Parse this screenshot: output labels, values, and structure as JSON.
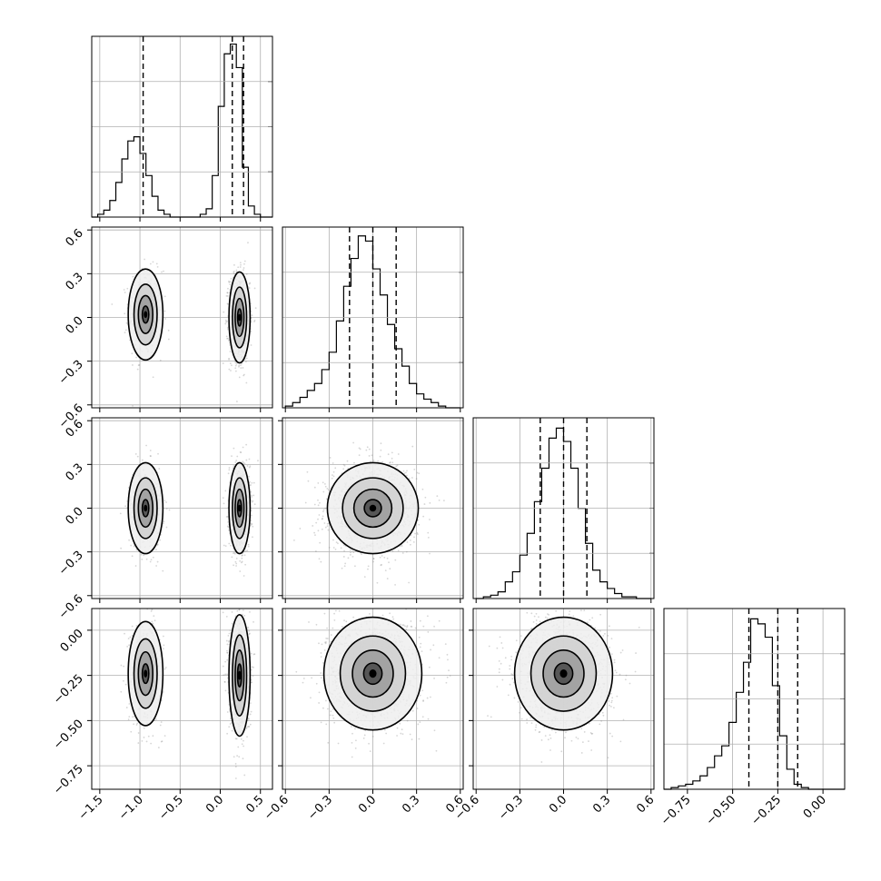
{
  "chart_data": {
    "type": "corner",
    "parameters": 4,
    "grid": true,
    "quantile_lines": "dashed",
    "axis_ranges": [
      [
        -1.6,
        0.65
      ],
      [
        -0.62,
        0.62
      ],
      [
        -0.62,
        0.62
      ],
      [
        -0.88,
        0.12
      ]
    ],
    "ticks": [
      {
        "values": [
          -1.5,
          -1.0,
          -0.5,
          0.0,
          0.5
        ],
        "labels": [
          "−1.5",
          "−1.0",
          "−0.5",
          "0.0",
          "0.5"
        ]
      },
      {
        "values": [
          -0.6,
          -0.3,
          0.0,
          0.3,
          0.6
        ],
        "labels": [
          "−0.6",
          "−0.3",
          "0.0",
          "0.3",
          "0.6"
        ]
      },
      {
        "values": [
          -0.6,
          -0.3,
          0.0,
          0.3,
          0.6
        ],
        "labels": [
          "−0.6",
          "−0.3",
          "0.0",
          "0.3",
          "0.6"
        ]
      },
      {
        "values": [
          -0.75,
          -0.5,
          -0.25,
          0.0
        ],
        "labels": [
          "−0.75",
          "−0.50",
          "−0.25",
          "0.00"
        ]
      }
    ],
    "histograms": [
      {
        "param": 1,
        "edges_start": -1.6,
        "bin_width": 0.075,
        "counts": [
          0,
          2,
          5,
          12,
          25,
          42,
          55,
          58,
          46,
          30,
          15,
          5,
          2,
          0,
          0,
          0,
          0,
          0,
          2,
          6,
          30,
          80,
          118,
          125,
          108,
          36,
          8,
          2,
          0,
          0
        ],
        "ymax": 128,
        "quantiles": [
          -0.96,
          0.15,
          0.29
        ]
      },
      {
        "param": 2,
        "edges_start": -0.6,
        "bin_width": 0.05,
        "counts": [
          1,
          3,
          6,
          10,
          14,
          22,
          32,
          50,
          70,
          86,
          99,
          96,
          80,
          65,
          48,
          34,
          24,
          14,
          8,
          5,
          3,
          1,
          0,
          0
        ],
        "ymax": 102,
        "quantiles": [
          -0.16,
          0.0,
          0.16
        ]
      },
      {
        "param": 3,
        "edges_start": -0.6,
        "bin_width": 0.05,
        "counts": [
          0,
          1,
          2,
          4,
          10,
          16,
          26,
          39,
          58,
          78,
          96,
          102,
          94,
          78,
          54,
          33,
          17,
          10,
          6,
          3,
          1,
          1,
          0,
          0
        ],
        "ymax": 106,
        "quantiles": [
          -0.16,
          0.0,
          0.16
        ]
      },
      {
        "param": 4,
        "edges_start": -0.88,
        "bin_width": 0.04,
        "counts": [
          0,
          1,
          2,
          3,
          5,
          8,
          13,
          20,
          26,
          40,
          58,
          76,
          102,
          99,
          91,
          62,
          32,
          12,
          3,
          1,
          0,
          0,
          0,
          0,
          0
        ],
        "ymax": 106,
        "quantiles": [
          -0.41,
          -0.25,
          -0.14
        ]
      }
    ],
    "joint_clusters": [
      {
        "x_param": 1,
        "y_param": 2,
        "clusters": [
          {
            "mx": -0.93,
            "my": 0.02,
            "sx": 0.09,
            "sy": 0.13,
            "w": 0.35
          },
          {
            "mx": 0.24,
            "my": 0.0,
            "sx": 0.055,
            "sy": 0.13,
            "w": 0.65
          }
        ]
      },
      {
        "x_param": 1,
        "y_param": 3,
        "clusters": [
          {
            "mx": -0.93,
            "my": 0.0,
            "sx": 0.09,
            "sy": 0.13,
            "w": 0.35
          },
          {
            "mx": 0.24,
            "my": 0.0,
            "sx": 0.055,
            "sy": 0.13,
            "w": 0.65
          }
        ]
      },
      {
        "x_param": 2,
        "y_param": 3,
        "clusters": [
          {
            "mx": 0.0,
            "my": 0.0,
            "sx": 0.13,
            "sy": 0.13,
            "w": 1.0
          }
        ]
      },
      {
        "x_param": 1,
        "y_param": 4,
        "clusters": [
          {
            "mx": -0.93,
            "my": -0.24,
            "sx": 0.09,
            "sy": 0.12,
            "w": 0.35
          },
          {
            "mx": 0.24,
            "my": -0.25,
            "sx": 0.055,
            "sy": 0.14,
            "w": 0.65
          }
        ]
      },
      {
        "x_param": 2,
        "y_param": 4,
        "clusters": [
          {
            "mx": 0.0,
            "my": -0.24,
            "sx": 0.14,
            "sy": 0.13,
            "w": 1.0
          }
        ]
      },
      {
        "x_param": 3,
        "y_param": 4,
        "clusters": [
          {
            "mx": 0.0,
            "my": -0.24,
            "sx": 0.14,
            "sy": 0.13,
            "w": 1.0
          }
        ]
      }
    ]
  }
}
